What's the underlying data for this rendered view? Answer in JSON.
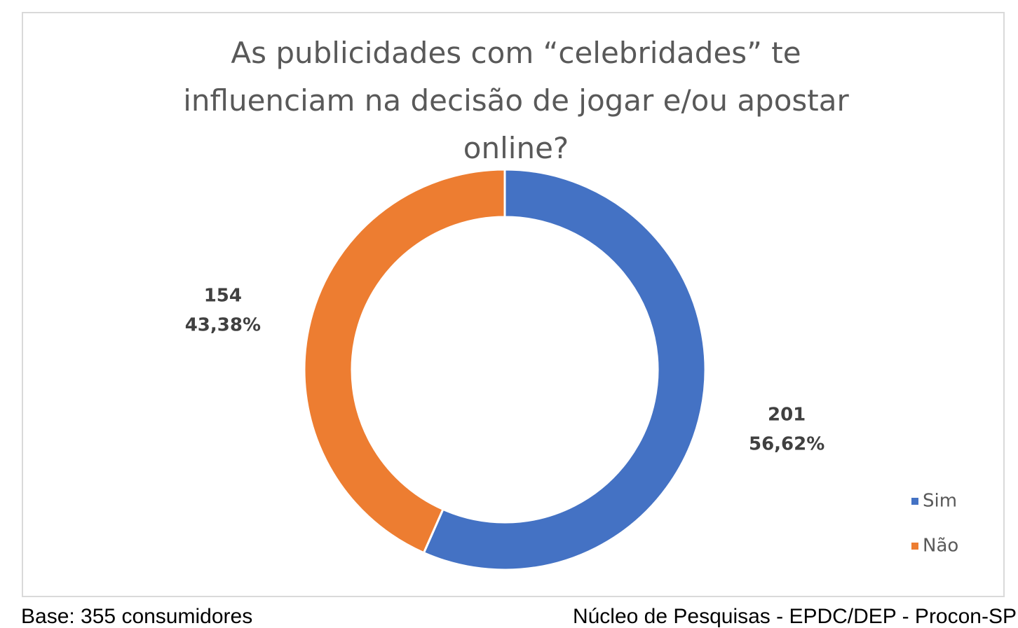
{
  "chart_data": {
    "type": "doughnut",
    "title": "As publicidades com “celebridades” te influenciam na decisão de jogar e/ou apostar online?",
    "categories": [
      "Sim",
      "Não"
    ],
    "values": [
      201,
      154
    ],
    "percentages": [
      56.62,
      43.38
    ],
    "percentage_labels": [
      "56,62%",
      "43,38%"
    ],
    "colors": [
      "#4472c4",
      "#ed7d31"
    ],
    "legend": "right",
    "footer_left": "Base: 355 consumidores",
    "footer_right": "Núcleo de Pesquisas - EPDC/DEP - Procon-SP"
  }
}
